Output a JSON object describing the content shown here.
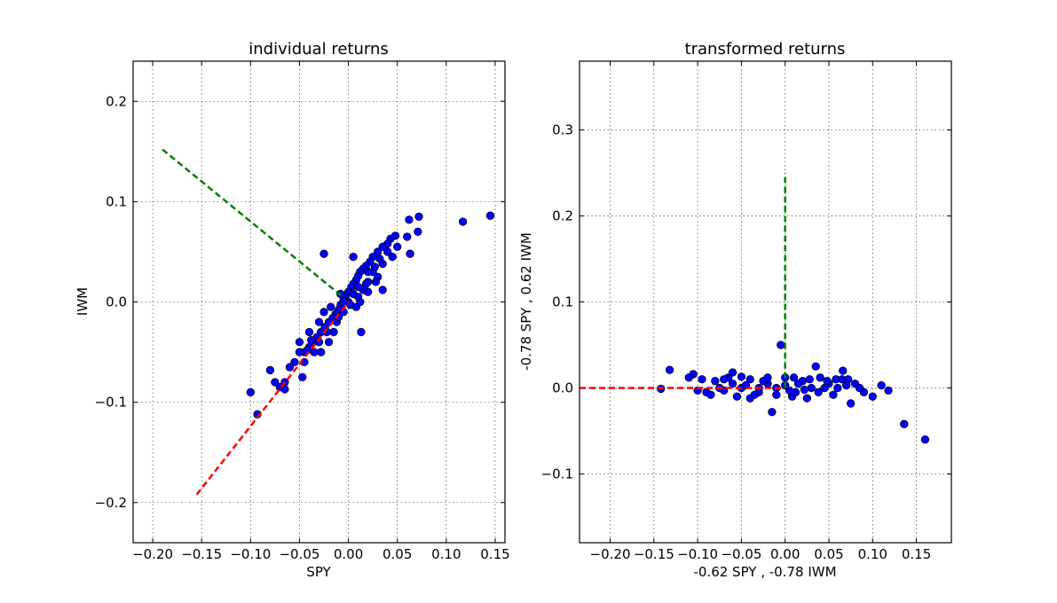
{
  "chart_data": [
    {
      "type": "scatter",
      "title": "individual returns",
      "xlabel": "SPY",
      "ylabel": "IWM",
      "xlim": [
        -0.22,
        0.16
      ],
      "ylim": [
        -0.24,
        0.24
      ],
      "xticks": [
        -0.2,
        -0.15,
        -0.1,
        -0.05,
        0.0,
        0.05,
        0.1,
        0.15
      ],
      "xtick_labels": [
        "−0.20",
        "−0.15",
        "−0.10",
        "−0.05",
        "0.00",
        "0.05",
        "0.10",
        "0.15"
      ],
      "yticks": [
        -0.2,
        -0.1,
        0.0,
        0.1,
        0.2
      ],
      "ytick_labels": [
        "−0.2",
        "−0.1",
        "0.0",
        "0.1",
        "0.2"
      ],
      "grid": true,
      "marker_color": "#0000ff",
      "points": [
        [
          0.145,
          0.086
        ],
        [
          0.117,
          0.08
        ],
        [
          0.072,
          0.085
        ],
        [
          0.062,
          0.082
        ],
        [
          0.071,
          0.07
        ],
        [
          0.06,
          0.065
        ],
        [
          0.063,
          0.048
        ],
        [
          0.048,
          0.066
        ],
        [
          0.043,
          0.063
        ],
        [
          0.04,
          0.058
        ],
        [
          0.035,
          0.055
        ],
        [
          0.03,
          0.05
        ],
        [
          0.025,
          0.045
        ],
        [
          0.022,
          0.04
        ],
        [
          0.018,
          0.036
        ],
        [
          0.015,
          0.033
        ],
        [
          0.012,
          0.03
        ],
        [
          0.01,
          0.026
        ],
        [
          0.008,
          0.022
        ],
        [
          0.005,
          0.018
        ],
        [
          0.003,
          0.015
        ],
        [
          0.0,
          0.01
        ],
        [
          -0.003,
          0.005
        ],
        [
          -0.005,
          0.002
        ],
        [
          -0.008,
          -0.003
        ],
        [
          -0.01,
          -0.008
        ],
        [
          -0.013,
          -0.012
        ],
        [
          -0.016,
          -0.016
        ],
        [
          -0.02,
          -0.02
        ],
        [
          -0.024,
          -0.025
        ],
        [
          -0.028,
          -0.03
        ],
        [
          -0.032,
          -0.035
        ],
        [
          -0.036,
          -0.04
        ],
        [
          -0.04,
          -0.045
        ],
        [
          -0.045,
          -0.05
        ],
        [
          -0.05,
          -0.05
        ],
        [
          -0.055,
          -0.06
        ],
        [
          -0.06,
          -0.065
        ],
        [
          -0.065,
          -0.08
        ],
        [
          -0.075,
          -0.08
        ],
        [
          -0.08,
          -0.068
        ],
        [
          -0.07,
          -0.085
        ],
        [
          -0.065,
          -0.087
        ],
        [
          -0.1,
          -0.09
        ],
        [
          -0.093,
          -0.112
        ],
        [
          -0.047,
          -0.075
        ],
        [
          -0.025,
          0.048
        ],
        [
          0.005,
          0.045
        ],
        [
          0.013,
          -0.03
        ],
        [
          0.035,
          0.012
        ],
        [
          0.03,
          0.025
        ],
        [
          0.02,
          0.02
        ],
        [
          0.015,
          0.012
        ],
        [
          0.01,
          0.005
        ],
        [
          0.0,
          0.0
        ],
        [
          0.008,
          -0.005
        ],
        [
          -0.005,
          -0.01
        ],
        [
          -0.015,
          -0.03
        ],
        [
          -0.03,
          -0.02
        ],
        [
          -0.04,
          -0.03
        ],
        [
          -0.02,
          -0.04
        ],
        [
          -0.035,
          -0.05
        ],
        [
          -0.05,
          -0.04
        ],
        [
          -0.025,
          -0.01
        ],
        [
          0.025,
          0.03
        ],
        [
          0.04,
          0.05
        ],
        [
          0.05,
          0.055
        ],
        [
          0.045,
          0.045
        ],
        [
          0.035,
          0.038
        ],
        [
          0.028,
          0.02
        ],
        [
          0.02,
          0.01
        ],
        [
          0.012,
          0.0
        ],
        [
          0.005,
          0.008
        ],
        [
          -0.005,
          0.0
        ],
        [
          -0.012,
          -0.02
        ],
        [
          -0.018,
          -0.005
        ],
        [
          -0.022,
          -0.03
        ],
        [
          -0.03,
          -0.04
        ],
        [
          -0.038,
          -0.038
        ],
        [
          -0.045,
          -0.06
        ],
        [
          0.032,
          0.043
        ],
        [
          0.027,
          0.035
        ],
        [
          0.02,
          0.03
        ],
        [
          0.018,
          0.018
        ],
        [
          0.01,
          0.015
        ],
        [
          -0.008,
          0.008
        ],
        [
          -0.01,
          -0.015
        ],
        [
          -0.028,
          -0.05
        ],
        [
          -0.042,
          -0.048
        ],
        [
          0.002,
          -0.003
        ]
      ],
      "lines": [
        {
          "color": "#008000",
          "style": "dashed",
          "x": [
            -0.19,
            -0.007
          ],
          "y": [
            0.152,
            0.006
          ]
        },
        {
          "color": "#ff0000",
          "style": "dashed",
          "x": [
            -0.155,
            0.0
          ],
          "y": [
            -0.192,
            0.0
          ]
        }
      ]
    },
    {
      "type": "scatter",
      "title": "transformed returns",
      "xlabel": "-0.62 SPY , -0.78 IWM",
      "ylabel": "-0.78 SPY , 0.62 IWM",
      "xlim": [
        -0.235,
        0.19
      ],
      "ylim": [
        -0.18,
        0.38
      ],
      "xticks": [
        -0.2,
        -0.15,
        -0.1,
        -0.05,
        0.0,
        0.05,
        0.1,
        0.15
      ],
      "xtick_labels": [
        "−0.20",
        "−0.15",
        "−0.10",
        "−0.05",
        "0.00",
        "0.05",
        "0.10",
        "0.15"
      ],
      "yticks": [
        -0.1,
        0.0,
        0.1,
        0.2,
        0.3
      ],
      "ytick_labels": [
        "−0.1",
        "0.0",
        "0.1",
        "0.2",
        "0.3"
      ],
      "grid": true,
      "marker_color": "#0000ff",
      "points": [
        [
          0.16,
          -0.06
        ],
        [
          0.136,
          -0.042
        ],
        [
          0.11,
          0.003
        ],
        [
          0.1,
          -0.01
        ],
        [
          0.118,
          -0.003
        ],
        [
          0.09,
          -0.005
        ],
        [
          0.08,
          0.005
        ],
        [
          0.075,
          -0.018
        ],
        [
          0.066,
          0.02
        ],
        [
          0.06,
          0.0
        ],
        [
          0.05,
          0.005
        ],
        [
          0.04,
          0.012
        ],
        [
          0.035,
          0.025
        ],
        [
          0.03,
          0.0
        ],
        [
          0.02,
          0.008
        ],
        [
          0.01,
          0.012
        ],
        [
          0.005,
          -0.003
        ],
        [
          0.0,
          0.003
        ],
        [
          -0.01,
          0.0
        ],
        [
          -0.02,
          0.005
        ],
        [
          -0.03,
          -0.005
        ],
        [
          -0.04,
          0.01
        ],
        [
          -0.05,
          0.0
        ],
        [
          -0.06,
          0.005
        ],
        [
          -0.07,
          -0.003
        ],
        [
          -0.08,
          0.008
        ],
        [
          -0.09,
          -0.005
        ],
        [
          -0.1,
          -0.003
        ],
        [
          -0.105,
          0.016
        ],
        [
          -0.11,
          0.012
        ],
        [
          -0.132,
          0.021
        ],
        [
          -0.142,
          -0.001
        ],
        [
          -0.015,
          -0.028
        ],
        [
          -0.005,
          0.05
        ],
        [
          0.065,
          0.01
        ],
        [
          0.055,
          -0.008
        ],
        [
          0.045,
          0.0
        ],
        [
          0.025,
          -0.012
        ],
        [
          0.015,
          0.005
        ],
        [
          -0.025,
          0.008
        ],
        [
          -0.035,
          -0.008
        ],
        [
          -0.045,
          0.003
        ],
        [
          -0.055,
          -0.01
        ],
        [
          -0.065,
          0.012
        ],
        [
          -0.075,
          0.0
        ],
        [
          -0.085,
          -0.008
        ],
        [
          -0.095,
          0.01
        ],
        [
          0.07,
          0.003
        ],
        [
          0.085,
          0.0
        ],
        [
          0.072,
          0.01
        ],
        [
          -0.06,
          0.018
        ],
        [
          -0.04,
          -0.012
        ],
        [
          -0.02,
          0.012
        ],
        [
          0.008,
          -0.01
        ],
        [
          0.028,
          0.01
        ],
        [
          0.038,
          -0.005
        ],
        [
          0.048,
          0.008
        ],
        [
          0.058,
          0.01
        ],
        [
          -0.07,
          0.01
        ],
        [
          -0.05,
          0.013
        ],
        [
          0.0,
          0.012
        ],
        [
          0.012,
          -0.005
        ],
        [
          -0.01,
          -0.008
        ],
        [
          0.022,
          -0.002
        ],
        [
          -0.03,
          0.0
        ]
      ],
      "lines": [
        {
          "color": "#008000",
          "style": "dashed",
          "x": [
            0.0,
            0.0
          ],
          "y": [
            0.0,
            0.25
          ]
        },
        {
          "color": "#ff0000",
          "style": "dashed",
          "x": [
            -0.235,
            0.0
          ],
          "y": [
            0.0,
            0.0
          ]
        }
      ]
    }
  ]
}
